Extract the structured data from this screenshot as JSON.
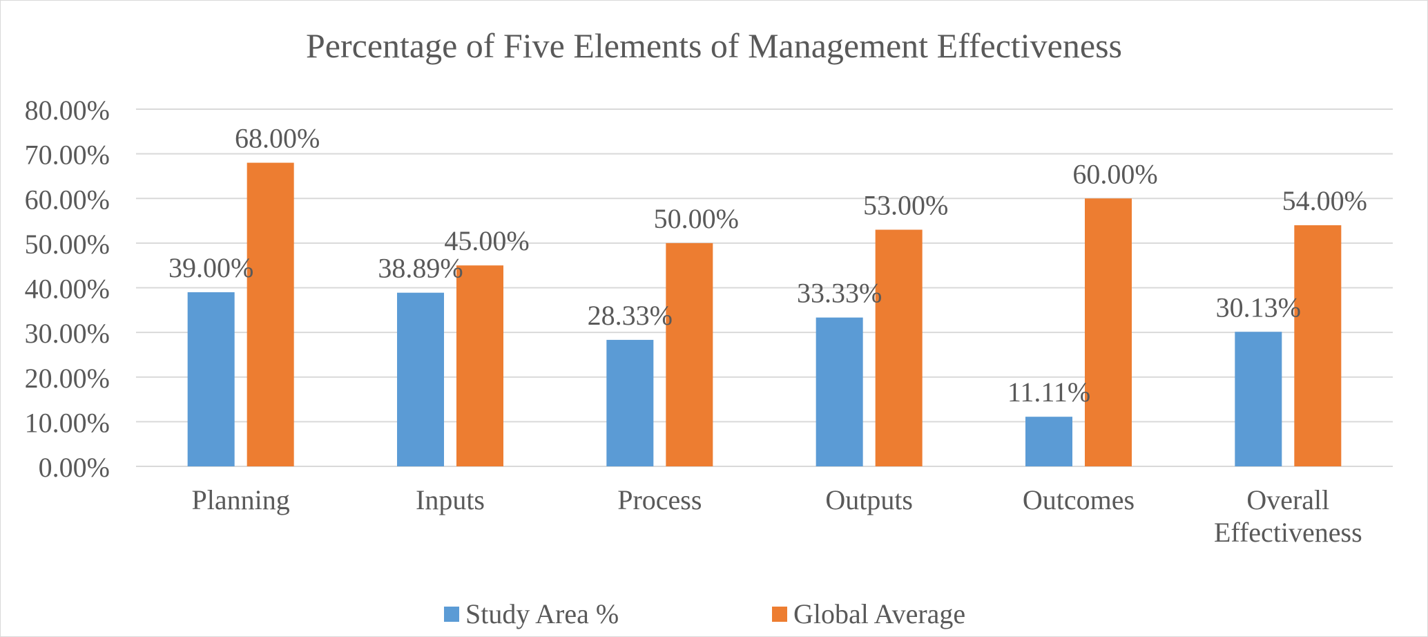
{
  "colors": {
    "study_area": "#5b9bd5",
    "global_average": "#ed7d31",
    "gridline": "#d9d9d9",
    "text": "#595959"
  },
  "chart_data": {
    "type": "bar",
    "title": "Percentage of Five Elements of Management Effectiveness",
    "xlabel": "",
    "ylabel": "",
    "ylim": [
      0,
      80
    ],
    "yticks": [
      "0.00%",
      "10.00%",
      "20.00%",
      "30.00%",
      "40.00%",
      "50.00%",
      "60.00%",
      "70.00%",
      "80.00%"
    ],
    "categories": [
      "Planning",
      "Inputs",
      "Process",
      "Outputs",
      "Outcomes",
      "Overall Effectiveness"
    ],
    "category_lines": [
      [
        "Planning"
      ],
      [
        "Inputs"
      ],
      [
        "Process"
      ],
      [
        "Outputs"
      ],
      [
        "Outcomes"
      ],
      [
        "Overall",
        "Effectiveness"
      ]
    ],
    "series": [
      {
        "name": "Study Area %",
        "values": [
          39.0,
          38.89,
          28.33,
          33.33,
          11.11,
          30.13
        ],
        "labels": [
          "39.00%",
          "38.89%",
          "28.33%",
          "33.33%",
          "11.11%",
          "30.13%"
        ]
      },
      {
        "name": "Global Average",
        "values": [
          68.0,
          45.0,
          50.0,
          53.0,
          60.0,
          54.0
        ],
        "labels": [
          "68.00%",
          "45.00%",
          "50.00%",
          "53.00%",
          "60.00%",
          "54.00%"
        ]
      }
    ],
    "grid": true,
    "legend": "bottom"
  }
}
